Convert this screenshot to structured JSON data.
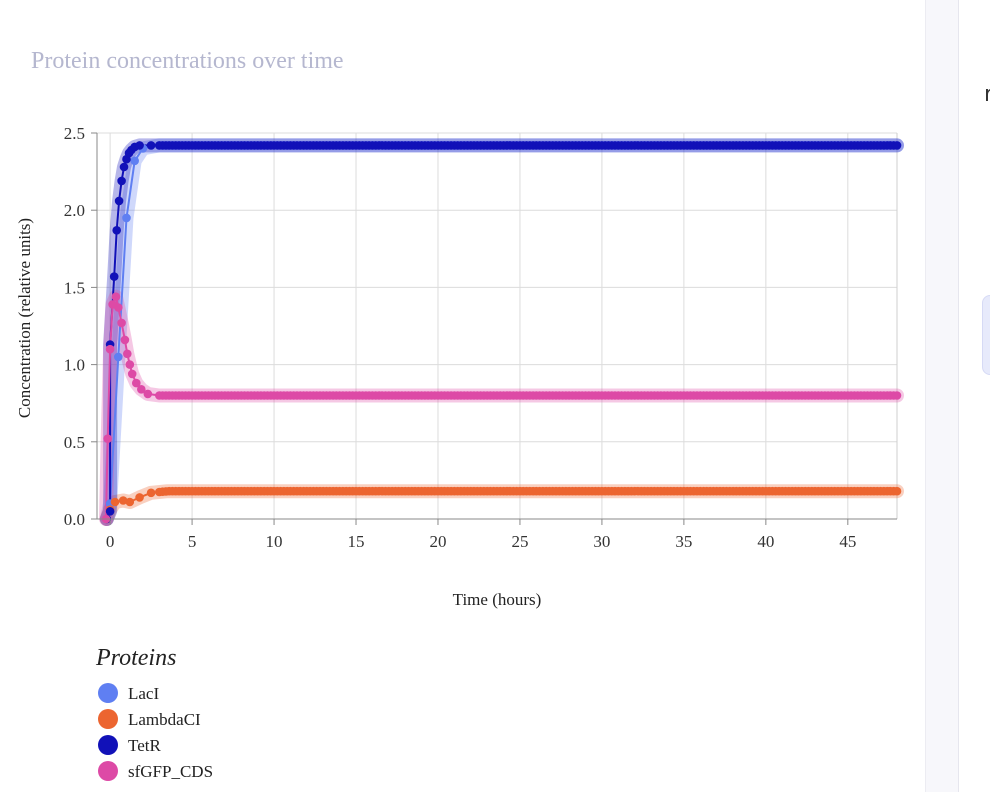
{
  "sidebar": {
    "partial_text": "r"
  },
  "chart_data": {
    "type": "scatter",
    "title": "Protein concentrations over time",
    "xlabel": "Time (hours)",
    "ylabel": "Concentration (relative units)",
    "xlim": [
      -0.8,
      48
    ],
    "ylim": [
      0,
      2.5
    ],
    "x_ticks": [
      0,
      5,
      10,
      15,
      20,
      25,
      30,
      35,
      40,
      45
    ],
    "y_ticks": [
      0,
      0.5,
      1,
      1.5,
      2,
      2.5
    ],
    "x_tick_labels": [
      "0",
      "5",
      "10",
      "15",
      "20",
      "25",
      "30",
      "35",
      "40",
      "45"
    ],
    "y_tick_labels": [
      "0.0",
      "0.5",
      "1.0",
      "1.5",
      "2.0",
      "2.5"
    ],
    "grid": true,
    "legend_title": "Proteins",
    "legend_position": "bottom-left",
    "series": [
      {
        "name": "LacI",
        "color": "#5f7ff2",
        "points": [
          [
            -0.2,
            0.0
          ],
          [
            0.0,
            0.1
          ],
          [
            0.5,
            1.05
          ],
          [
            1.0,
            1.95
          ],
          [
            1.5,
            2.32
          ],
          [
            2.0,
            2.4
          ],
          [
            3.0,
            2.42
          ],
          [
            48.0,
            2.42
          ]
        ]
      },
      {
        "name": "LambdaCI",
        "color": "#ec6530",
        "points": [
          [
            -0.2,
            0.0
          ],
          [
            0.0,
            0.06
          ],
          [
            0.3,
            0.11
          ],
          [
            0.8,
            0.12
          ],
          [
            1.2,
            0.11
          ],
          [
            1.8,
            0.14
          ],
          [
            2.5,
            0.17
          ],
          [
            3.5,
            0.18
          ],
          [
            48.0,
            0.18
          ]
        ]
      },
      {
        "name": "TetR",
        "color": "#1111b8",
        "points": [
          [
            -0.2,
            0.0
          ],
          [
            0.0,
            0.05
          ],
          [
            0.0,
            1.13
          ],
          [
            0.25,
            1.57
          ],
          [
            0.4,
            1.87
          ],
          [
            0.55,
            2.06
          ],
          [
            0.7,
            2.19
          ],
          [
            0.85,
            2.28
          ],
          [
            1.0,
            2.33
          ],
          [
            1.15,
            2.37
          ],
          [
            1.3,
            2.39
          ],
          [
            1.5,
            2.41
          ],
          [
            1.8,
            2.42
          ],
          [
            2.5,
            2.42
          ],
          [
            48.0,
            2.42
          ]
        ]
      },
      {
        "name": "sfGFP_CDS",
        "color": "#dd4aa6",
        "points": [
          [
            -0.25,
            0.0
          ],
          [
            -0.15,
            0.52
          ],
          [
            0.0,
            1.1
          ],
          [
            0.15,
            1.39
          ],
          [
            0.35,
            1.44
          ],
          [
            0.5,
            1.37
          ],
          [
            0.7,
            1.27
          ],
          [
            0.9,
            1.16
          ],
          [
            1.05,
            1.07
          ],
          [
            1.2,
            1.0
          ],
          [
            1.35,
            0.94
          ],
          [
            1.6,
            0.88
          ],
          [
            1.9,
            0.84
          ],
          [
            2.3,
            0.81
          ],
          [
            3.0,
            0.8
          ],
          [
            48.0,
            0.8
          ]
        ]
      }
    ]
  }
}
